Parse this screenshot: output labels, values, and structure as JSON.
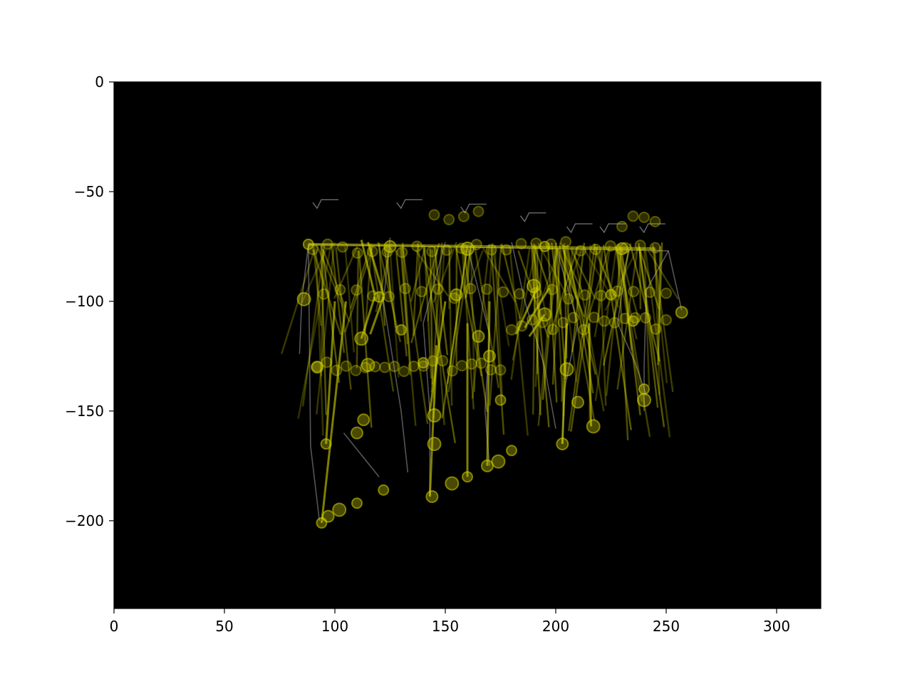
{
  "chart_data": {
    "type": "line",
    "title": "",
    "xlabel": "",
    "ylabel": "",
    "xlim": [
      0,
      320
    ],
    "ylim": [
      -240,
      0
    ],
    "xticks": [
      0,
      50,
      100,
      150,
      200,
      250,
      300
    ],
    "yticks": [
      0,
      -50,
      -100,
      -150,
      -200
    ],
    "xtick_labels": [
      "0",
      "50",
      "100",
      "150",
      "200",
      "250",
      "300"
    ],
    "ytick_labels": [
      "0",
      "−50",
      "−100",
      "−150",
      "−200"
    ],
    "grid": false,
    "background": "#000000",
    "colors": {
      "limb": "#d4d400",
      "joint": "#d4d400",
      "skeleton": "#9a9aa0"
    },
    "series": [
      {
        "points": [
          [
            88,
            -74
          ],
          [
            125,
            -75
          ],
          [
            160,
            -76
          ],
          [
            195,
            -75
          ],
          [
            230,
            -76
          ],
          [
            86,
            -99
          ],
          [
            120,
            -98
          ],
          [
            155,
            -97
          ],
          [
            190,
            -93
          ],
          [
            225,
            -97
          ],
          [
            257,
            -105
          ],
          [
            112,
            -117
          ],
          [
            130,
            -113
          ],
          [
            165,
            -116
          ],
          [
            195,
            -106
          ],
          [
            235,
            -109
          ],
          [
            92,
            -130
          ],
          [
            115,
            -129
          ],
          [
            140,
            -128
          ],
          [
            170,
            -125
          ],
          [
            205,
            -131
          ],
          [
            240,
            -140
          ],
          [
            113,
            -154
          ],
          [
            145,
            -152
          ],
          [
            175,
            -145
          ],
          [
            210,
            -146
          ],
          [
            240,
            -145
          ],
          [
            96,
            -165
          ],
          [
            110,
            -160
          ],
          [
            145,
            -165
          ],
          [
            180,
            -168
          ],
          [
            203,
            -165
          ],
          [
            217,
            -157
          ],
          [
            122,
            -186
          ],
          [
            144,
            -189
          ],
          [
            153,
            -183
          ],
          [
            160,
            -180
          ],
          [
            169,
            -175
          ],
          [
            174,
            -173
          ],
          [
            94,
            -201
          ],
          [
            97,
            -198
          ],
          [
            102,
            -195
          ],
          [
            110,
            -192
          ]
        ]
      }
    ]
  }
}
